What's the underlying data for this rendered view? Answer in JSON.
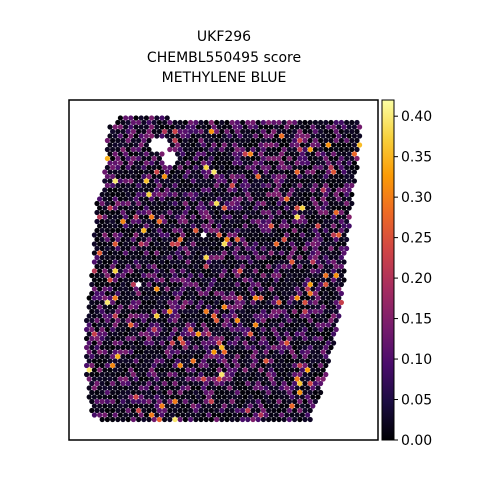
{
  "chart_data": {
    "type": "scatter",
    "subtype": "hexagonal spatial spot map (colored by score)",
    "title_lines": [
      "UKF296",
      "CHEMBL550495 score",
      "METHYLENE BLUE"
    ],
    "xlabel": "",
    "ylabel": "",
    "axes_ticks_visible": false,
    "grid": false,
    "colormap": "inferno",
    "colorbar": {
      "location": "right",
      "vmin": 0.0,
      "vmax": 0.42,
      "ticks": [
        0.0,
        0.05,
        0.1,
        0.15,
        0.2,
        0.25,
        0.3,
        0.35,
        0.4
      ],
      "tick_labels": [
        "0.00",
        "0.05",
        "0.10",
        "0.15",
        "0.20",
        "0.25",
        "0.30",
        "0.35",
        "0.40"
      ]
    },
    "value_distribution": {
      "majority_range": [
        0.0,
        0.03
      ],
      "moderate_range": [
        0.08,
        0.15
      ],
      "high_spots_range": [
        0.2,
        0.32
      ],
      "max_visible": 0.4
    }
  },
  "colors": {
    "inferno_stops": [
      "#000004",
      "#1b0c41",
      "#4a0c6b",
      "#781c6d",
      "#a52c60",
      "#cf4446",
      "#ed6925",
      "#fb9b06",
      "#f7d13d",
      "#fcffa4"
    ],
    "frame": "#000000",
    "background": "#ffffff"
  }
}
